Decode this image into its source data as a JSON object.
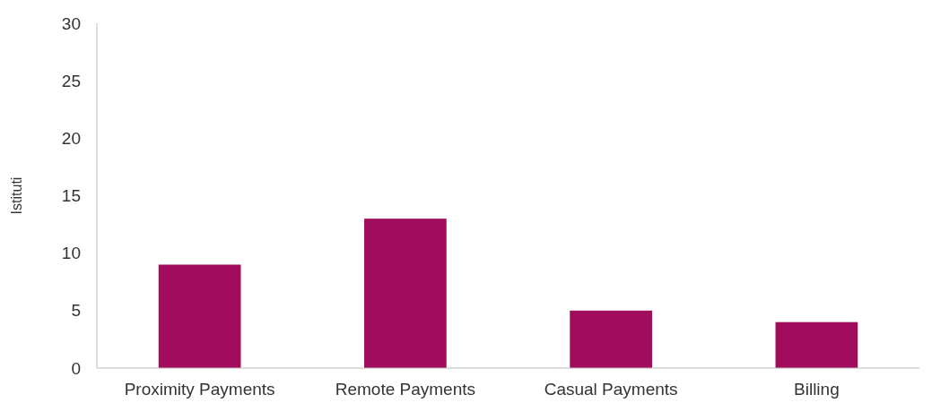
{
  "chart_data": {
    "type": "bar",
    "ylabel": "Istituti",
    "categories": [
      "Proximity Payments",
      "Remote Payments",
      "Casual Payments",
      "Billing"
    ],
    "values": [
      9,
      13,
      5,
      4
    ],
    "color": "#a20c5c",
    "ylim": [
      0,
      30
    ],
    "yticks": [
      0,
      5,
      10,
      15,
      20,
      25,
      30
    ],
    "grid": false
  }
}
